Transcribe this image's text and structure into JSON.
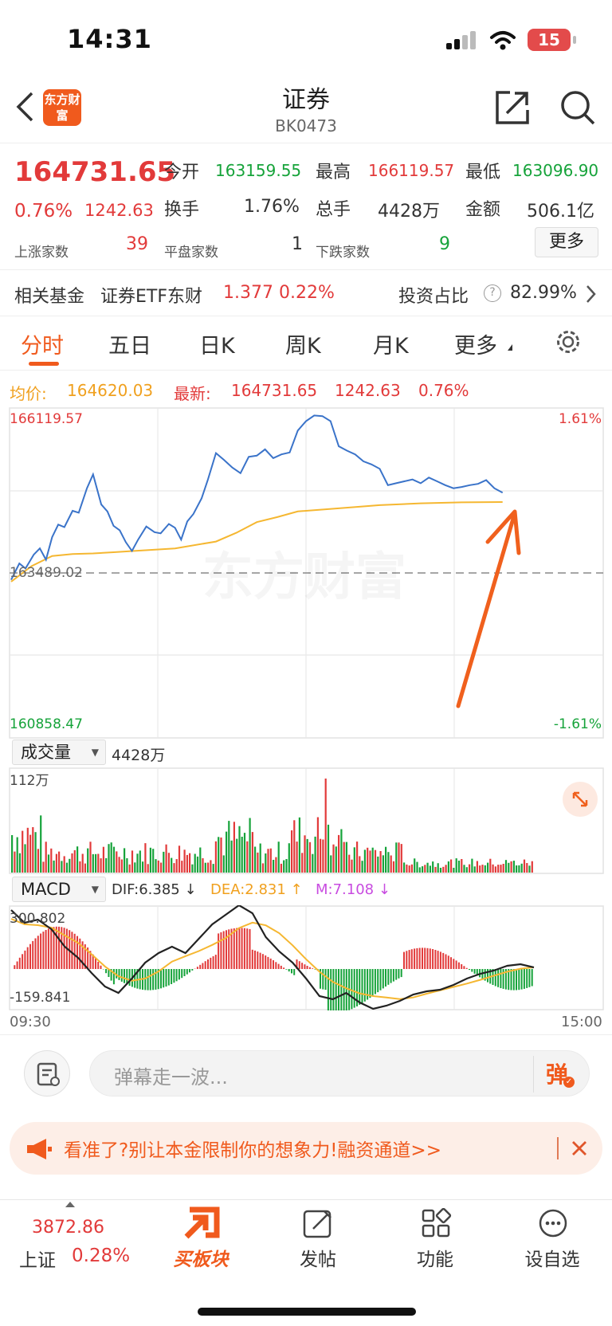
{
  "status_bar": {
    "time": "14:31",
    "battery": "15"
  },
  "header": {
    "title": "证券",
    "code": "BK0473",
    "logo": "东方财富"
  },
  "quote": {
    "price": "164731.65",
    "change_pct": "0.76%",
    "change": "1242.63",
    "open_label": "今开",
    "open": "163159.55",
    "high_label": "最高",
    "high": "166119.57",
    "low_label": "最低",
    "low": "163096.90",
    "turnover_label": "换手",
    "turnover": "1.76%",
    "volume_label": "总手",
    "volume": "4428万",
    "amount_label": "金额",
    "amount": "506.1亿",
    "up_label": "上涨家数",
    "up": "39",
    "flat_label": "平盘家数",
    "flat": "1",
    "down_label": "下跌家数",
    "down": "9",
    "more": "更多"
  },
  "fund": {
    "label": "相关基金",
    "name": "证券ETF东财",
    "price": "1.377",
    "pct": "0.22%",
    "invest_label": "投资占比",
    "invest": "82.99%"
  },
  "tabs": [
    {
      "label": "分时"
    },
    {
      "label": "五日"
    },
    {
      "label": "日K"
    },
    {
      "label": "周K"
    },
    {
      "label": "月K"
    },
    {
      "label": "更多"
    }
  ],
  "legend": {
    "avg_label": "均价:",
    "avg": "164620.03",
    "latest_label": "最新:",
    "latest": "164731.65",
    "change": "1242.63",
    "pct": "0.76%"
  },
  "price_chart": {
    "max_label": "166119.57",
    "min_label": "160858.47",
    "ref_label": "163489.02",
    "max_pct": "1.61%",
    "min_pct": "-1.61%",
    "watermark": "东方财富"
  },
  "volume_panel": {
    "selector": "成交量",
    "total": "4428万",
    "max_label": "112万"
  },
  "macd_panel": {
    "selector": "MACD",
    "dif": "DIF:6.385 ↓",
    "dea": "DEA:2.831 ↑",
    "m": "M:7.108 ↓",
    "max_label": "300.802",
    "min_label": "-159.841",
    "time_start": "09:30",
    "time_end": "15:00"
  },
  "comment": {
    "placeholder": "弹幕走一波...",
    "danmu": "弹"
  },
  "banner": {
    "text": "看准了?别让本金限制你的想象力!融资通道>>"
  },
  "bottom_nav": {
    "index_value": "3872.86",
    "index_name": "上证",
    "index_pct": "0.28%",
    "items": [
      {
        "label": "买板块"
      },
      {
        "label": "发帖"
      },
      {
        "label": "功能"
      },
      {
        "label": "设自选"
      }
    ]
  },
  "colors": {
    "up": "#e23a3a",
    "down": "#16a33a",
    "avg": "#f5b731",
    "price_line": "#3a73c9",
    "accent": "#f05a1d"
  },
  "chart_data": {
    "type": "line",
    "price": {
      "y_range": [
        160858.47,
        166119.57
      ],
      "reference": 163489.02,
      "series": [
        {
          "name": "最新",
          "x": [
            0,
            4,
            7,
            11,
            14,
            17,
            20,
            23,
            26,
            30,
            33,
            37,
            40,
            44,
            47,
            50,
            53,
            56,
            59,
            62,
            66,
            70,
            73,
            77,
            80,
            83,
            86,
            89,
            93,
            96,
            100,
            104,
            108,
            112,
            116,
            120,
            124,
            128,
            132,
            136,
            140,
            144,
            148,
            152,
            156,
            160,
            164,
            168,
            172,
            176,
            180,
            184,
            188,
            192,
            196,
            200,
            204,
            208,
            212,
            216,
            220,
            224,
            228,
            232,
            236,
            240
          ],
          "y": [
            163380,
            163640,
            163560,
            163780,
            163880,
            163700,
            164060,
            164260,
            164220,
            164480,
            164450,
            164840,
            165060,
            164580,
            164470,
            164240,
            164170,
            163980,
            163840,
            164020,
            164230,
            164140,
            164120,
            164270,
            164210,
            164020,
            164310,
            164430,
            164680,
            164970,
            165400,
            165290,
            165170,
            165080,
            165340,
            165360,
            165460,
            165320,
            165380,
            165410,
            165760,
            165910,
            166000,
            165990,
            165910,
            165510,
            165440,
            165380,
            165270,
            165220,
            165150,
            164890,
            164920,
            164950,
            164980,
            164920,
            165010,
            164950,
            164890,
            164840,
            164860,
            164890,
            164910,
            164970,
            164840,
            164770
          ]
        },
        {
          "name": "均价",
          "x": [
            0,
            10,
            20,
            30,
            40,
            50,
            60,
            80,
            100,
            110,
            120,
            130,
            140,
            160,
            180,
            200,
            220,
            240
          ],
          "y": [
            163350,
            163600,
            163760,
            163790,
            163800,
            163820,
            163840,
            163880,
            163990,
            164130,
            164300,
            164380,
            164470,
            164520,
            164570,
            164600,
            164615,
            164620
          ]
        }
      ]
    },
    "volume": {
      "y_max": 1120000,
      "bar_count": 240
    },
    "macd": {
      "y_range": [
        -159.841,
        300.802
      ]
    }
  }
}
